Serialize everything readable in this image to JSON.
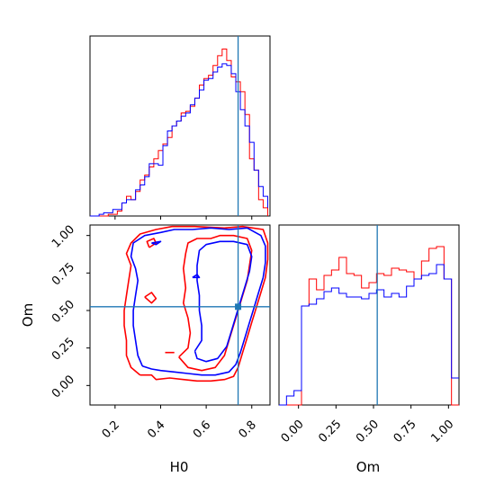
{
  "chart_data": {
    "type": "corner",
    "parameters": [
      "H0",
      "Om"
    ],
    "truths": {
      "H0": 0.74,
      "Om": 0.525
    },
    "colors": {
      "run_red": "#ff0000",
      "run_blue": "#0000ff",
      "truth": "#1f77b4"
    },
    "axes": {
      "H0": {
        "label": "H0",
        "range": [
          0.09,
          0.88
        ],
        "ticks": [
          0.2,
          0.4,
          0.6,
          0.8
        ],
        "tick_labels": [
          "0.2",
          "0.4",
          "0.6",
          "0.8"
        ]
      },
      "Om": {
        "label": "Om",
        "range": [
          -0.13,
          1.07
        ],
        "ticks": [
          0.0,
          0.25,
          0.5,
          0.75,
          1.0
        ],
        "tick_labels": [
          "0.00",
          "0.25",
          "0.50",
          "0.75",
          "1.00"
        ]
      }
    },
    "hist_H0": {
      "ylim": [
        0,
        1.1
      ],
      "red": [
        [
          0.09,
          0.0
        ],
        [
          0.13,
          0.0
        ],
        [
          0.17,
          0.01
        ],
        [
          0.21,
          0.03
        ],
        [
          0.23,
          0.08
        ],
        [
          0.25,
          0.12
        ],
        [
          0.27,
          0.1
        ],
        [
          0.29,
          0.15
        ],
        [
          0.31,
          0.22
        ],
        [
          0.33,
          0.25
        ],
        [
          0.35,
          0.3
        ],
        [
          0.37,
          0.35
        ],
        [
          0.39,
          0.4
        ],
        [
          0.41,
          0.44
        ],
        [
          0.43,
          0.48
        ],
        [
          0.45,
          0.55
        ],
        [
          0.47,
          0.58
        ],
        [
          0.49,
          0.63
        ],
        [
          0.51,
          0.64
        ],
        [
          0.53,
          0.67
        ],
        [
          0.55,
          0.72
        ],
        [
          0.57,
          0.8
        ],
        [
          0.59,
          0.84
        ],
        [
          0.61,
          0.86
        ],
        [
          0.63,
          0.92
        ],
        [
          0.65,
          0.98
        ],
        [
          0.67,
          1.02
        ],
        [
          0.69,
          0.95
        ],
        [
          0.71,
          0.85
        ],
        [
          0.73,
          0.82
        ],
        [
          0.75,
          0.76
        ],
        [
          0.77,
          0.62
        ],
        [
          0.79,
          0.35
        ],
        [
          0.81,
          0.28
        ],
        [
          0.83,
          0.1
        ],
        [
          0.85,
          0.05
        ],
        [
          0.87,
          0.0
        ]
      ],
      "blue": [
        [
          0.09,
          0.0
        ],
        [
          0.11,
          0.0
        ],
        [
          0.13,
          0.01
        ],
        [
          0.15,
          0.02
        ],
        [
          0.17,
          0.02
        ],
        [
          0.19,
          0.04
        ],
        [
          0.21,
          0.04
        ],
        [
          0.23,
          0.08
        ],
        [
          0.25,
          0.1
        ],
        [
          0.27,
          0.1
        ],
        [
          0.29,
          0.16
        ],
        [
          0.31,
          0.19
        ],
        [
          0.33,
          0.24
        ],
        [
          0.35,
          0.32
        ],
        [
          0.37,
          0.32
        ],
        [
          0.39,
          0.31
        ],
        [
          0.41,
          0.43
        ],
        [
          0.43,
          0.52
        ],
        [
          0.45,
          0.55
        ],
        [
          0.47,
          0.58
        ],
        [
          0.49,
          0.61
        ],
        [
          0.51,
          0.63
        ],
        [
          0.53,
          0.68
        ],
        [
          0.55,
          0.72
        ],
        [
          0.57,
          0.77
        ],
        [
          0.59,
          0.83
        ],
        [
          0.61,
          0.84
        ],
        [
          0.63,
          0.88
        ],
        [
          0.65,
          0.91
        ],
        [
          0.67,
          0.93
        ],
        [
          0.69,
          0.92
        ],
        [
          0.71,
          0.87
        ],
        [
          0.73,
          0.76
        ],
        [
          0.75,
          0.65
        ],
        [
          0.77,
          0.55
        ],
        [
          0.79,
          0.45
        ],
        [
          0.81,
          0.28
        ],
        [
          0.83,
          0.18
        ],
        [
          0.85,
          0.12
        ],
        [
          0.87,
          0.05
        ]
      ]
    },
    "hist_Om": {
      "ylim": [
        0,
        1.0
      ],
      "red": [
        [
          -0.13,
          0.0
        ],
        [
          0.0,
          0.0
        ],
        [
          0.02,
          0.55
        ],
        [
          0.07,
          0.7
        ],
        [
          0.12,
          0.64
        ],
        [
          0.17,
          0.72
        ],
        [
          0.22,
          0.75
        ],
        [
          0.27,
          0.82
        ],
        [
          0.32,
          0.73
        ],
        [
          0.37,
          0.72
        ],
        [
          0.42,
          0.65
        ],
        [
          0.47,
          0.68
        ],
        [
          0.52,
          0.73
        ],
        [
          0.57,
          0.72
        ],
        [
          0.62,
          0.76
        ],
        [
          0.67,
          0.75
        ],
        [
          0.72,
          0.74
        ],
        [
          0.77,
          0.7
        ],
        [
          0.82,
          0.8
        ],
        [
          0.87,
          0.87
        ],
        [
          0.92,
          0.88
        ],
        [
          0.97,
          0.7
        ],
        [
          1.02,
          0.0
        ],
        [
          1.07,
          0.0
        ]
      ],
      "blue": [
        [
          -0.13,
          0.0
        ],
        [
          -0.08,
          0.05
        ],
        [
          -0.03,
          0.08
        ],
        [
          0.02,
          0.55
        ],
        [
          0.07,
          0.56
        ],
        [
          0.12,
          0.59
        ],
        [
          0.17,
          0.63
        ],
        [
          0.22,
          0.65
        ],
        [
          0.27,
          0.62
        ],
        [
          0.32,
          0.6
        ],
        [
          0.37,
          0.6
        ],
        [
          0.42,
          0.59
        ],
        [
          0.47,
          0.62
        ],
        [
          0.52,
          0.64
        ],
        [
          0.57,
          0.6
        ],
        [
          0.62,
          0.62
        ],
        [
          0.67,
          0.6
        ],
        [
          0.72,
          0.66
        ],
        [
          0.77,
          0.7
        ],
        [
          0.82,
          0.72
        ],
        [
          0.87,
          0.73
        ],
        [
          0.92,
          0.78
        ],
        [
          0.97,
          0.7
        ],
        [
          1.02,
          0.15
        ],
        [
          1.07,
          0.15
        ]
      ]
    },
    "contours": [
      {
        "color": "red",
        "points": [
          [
            0.31,
            0.07
          ],
          [
            0.36,
            0.07
          ],
          [
            0.38,
            0.04
          ],
          [
            0.44,
            0.05
          ],
          [
            0.5,
            0.04
          ],
          [
            0.56,
            0.03
          ],
          [
            0.62,
            0.03
          ],
          [
            0.68,
            0.04
          ],
          [
            0.72,
            0.06
          ],
          [
            0.74,
            0.12
          ],
          [
            0.76,
            0.22
          ],
          [
            0.78,
            0.32
          ],
          [
            0.8,
            0.42
          ],
          [
            0.82,
            0.52
          ],
          [
            0.84,
            0.62
          ],
          [
            0.86,
            0.72
          ],
          [
            0.87,
            0.84
          ],
          [
            0.87,
            0.95
          ],
          [
            0.85,
            1.04
          ],
          [
            0.76,
            1.06
          ],
          [
            0.68,
            1.05
          ],
          [
            0.55,
            1.06
          ],
          [
            0.45,
            1.06
          ],
          [
            0.38,
            1.04
          ],
          [
            0.31,
            1.01
          ],
          [
            0.27,
            0.95
          ],
          [
            0.25,
            0.88
          ],
          [
            0.27,
            0.8
          ],
          [
            0.26,
            0.7
          ],
          [
            0.25,
            0.6
          ],
          [
            0.24,
            0.5
          ],
          [
            0.24,
            0.4
          ],
          [
            0.25,
            0.3
          ],
          [
            0.25,
            0.2
          ],
          [
            0.27,
            0.12
          ],
          [
            0.31,
            0.07
          ]
        ]
      },
      {
        "color": "red",
        "points": [
          [
            0.48,
            0.19
          ],
          [
            0.52,
            0.25
          ],
          [
            0.53,
            0.35
          ],
          [
            0.52,
            0.45
          ],
          [
            0.5,
            0.55
          ],
          [
            0.51,
            0.65
          ],
          [
            0.5,
            0.78
          ],
          [
            0.51,
            0.88
          ],
          [
            0.52,
            0.95
          ],
          [
            0.56,
            0.98
          ],
          [
            0.62,
            0.98
          ],
          [
            0.66,
            1.0
          ],
          [
            0.72,
            1.0
          ],
          [
            0.78,
            0.98
          ],
          [
            0.8,
            0.9
          ],
          [
            0.79,
            0.8
          ],
          [
            0.78,
            0.7
          ],
          [
            0.76,
            0.6
          ],
          [
            0.74,
            0.5
          ],
          [
            0.72,
            0.4
          ],
          [
            0.7,
            0.3
          ],
          [
            0.68,
            0.2
          ],
          [
            0.64,
            0.12
          ],
          [
            0.58,
            0.1
          ],
          [
            0.52,
            0.12
          ],
          [
            0.48,
            0.19
          ]
        ]
      },
      {
        "color": "red",
        "points": [
          [
            0.33,
            0.59
          ],
          [
            0.36,
            0.62
          ],
          [
            0.38,
            0.58
          ],
          [
            0.36,
            0.55
          ],
          [
            0.33,
            0.59
          ]
        ]
      },
      {
        "color": "red",
        "points": [
          [
            0.42,
            0.22
          ],
          [
            0.46,
            0.22
          ]
        ]
      },
      {
        "color": "red",
        "points": [
          [
            0.35,
            0.92
          ],
          [
            0.38,
            0.95
          ],
          [
            0.37,
            0.98
          ],
          [
            0.34,
            0.96
          ],
          [
            0.35,
            0.92
          ]
        ]
      },
      {
        "color": "blue",
        "points": [
          [
            0.32,
            0.13
          ],
          [
            0.36,
            0.11
          ],
          [
            0.4,
            0.1
          ],
          [
            0.46,
            0.09
          ],
          [
            0.52,
            0.08
          ],
          [
            0.58,
            0.07
          ],
          [
            0.64,
            0.07
          ],
          [
            0.7,
            0.09
          ],
          [
            0.73,
            0.14
          ],
          [
            0.75,
            0.22
          ],
          [
            0.77,
            0.32
          ],
          [
            0.79,
            0.42
          ],
          [
            0.81,
            0.52
          ],
          [
            0.83,
            0.62
          ],
          [
            0.85,
            0.72
          ],
          [
            0.86,
            0.82
          ],
          [
            0.86,
            0.93
          ],
          [
            0.84,
            1.0
          ],
          [
            0.78,
            1.05
          ],
          [
            0.7,
            1.04
          ],
          [
            0.62,
            1.05
          ],
          [
            0.54,
            1.04
          ],
          [
            0.46,
            1.04
          ],
          [
            0.4,
            1.02
          ],
          [
            0.33,
            1.0
          ],
          [
            0.28,
            0.95
          ],
          [
            0.27,
            0.86
          ],
          [
            0.29,
            0.78
          ],
          [
            0.3,
            0.7
          ],
          [
            0.29,
            0.6
          ],
          [
            0.28,
            0.5
          ],
          [
            0.28,
            0.4
          ],
          [
            0.29,
            0.3
          ],
          [
            0.3,
            0.2
          ],
          [
            0.32,
            0.13
          ]
        ]
      },
      {
        "color": "blue",
        "points": [
          [
            0.55,
            0.23
          ],
          [
            0.58,
            0.3
          ],
          [
            0.58,
            0.4
          ],
          [
            0.57,
            0.5
          ],
          [
            0.57,
            0.6
          ],
          [
            0.56,
            0.7
          ],
          [
            0.56,
            0.8
          ],
          [
            0.57,
            0.9
          ],
          [
            0.6,
            0.94
          ],
          [
            0.66,
            0.96
          ],
          [
            0.72,
            0.96
          ],
          [
            0.78,
            0.94
          ],
          [
            0.8,
            0.86
          ],
          [
            0.79,
            0.76
          ],
          [
            0.77,
            0.66
          ],
          [
            0.75,
            0.56
          ],
          [
            0.73,
            0.46
          ],
          [
            0.71,
            0.36
          ],
          [
            0.69,
            0.26
          ],
          [
            0.65,
            0.18
          ],
          [
            0.6,
            0.16
          ],
          [
            0.56,
            0.18
          ],
          [
            0.55,
            0.23
          ]
        ]
      },
      {
        "color": "blue",
        "points": [
          [
            0.36,
            0.95
          ],
          [
            0.4,
            0.96
          ],
          [
            0.38,
            0.94
          ],
          [
            0.36,
            0.95
          ]
        ]
      },
      {
        "color": "blue",
        "points": [
          [
            0.54,
            0.72
          ],
          [
            0.56,
            0.74
          ],
          [
            0.57,
            0.72
          ],
          [
            0.54,
            0.72
          ]
        ]
      }
    ]
  }
}
